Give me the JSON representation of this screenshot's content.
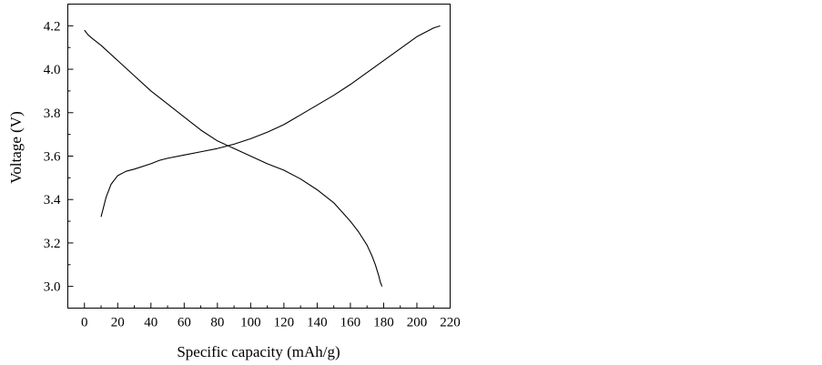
{
  "chart_data": {
    "type": "line",
    "title": "",
    "xlabel": "Specific capacity (mAh/g)",
    "ylabel": "Voltage (V)",
    "xlim": [
      -10,
      220
    ],
    "ylim": [
      2.9,
      4.3
    ],
    "x_ticks": [
      0,
      20,
      40,
      60,
      80,
      100,
      120,
      140,
      160,
      180,
      200,
      220
    ],
    "y_ticks": [
      3.0,
      3.2,
      3.4,
      3.6,
      3.8,
      4.0,
      4.2
    ],
    "x_tick_labels": [
      "0",
      "20",
      "40",
      "60",
      "80",
      "100",
      "120",
      "140",
      "160",
      "180",
      "200",
      "220"
    ],
    "y_tick_labels": [
      "3.0",
      "3.2",
      "3.4",
      "3.6",
      "3.8",
      "4.0",
      "4.2"
    ],
    "grid": false,
    "series": [
      {
        "x": [
          10,
          13,
          16,
          20,
          25,
          30,
          40,
          45,
          50,
          60,
          70,
          80,
          90,
          100,
          110,
          120,
          130,
          140,
          150,
          160,
          170,
          180,
          190,
          200,
          210,
          214
        ],
        "y": [
          3.32,
          3.41,
          3.47,
          3.51,
          3.53,
          3.54,
          3.565,
          3.58,
          3.59,
          3.605,
          3.62,
          3.635,
          3.655,
          3.68,
          3.71,
          3.745,
          3.79,
          3.835,
          3.88,
          3.93,
          3.985,
          4.04,
          4.095,
          4.15,
          4.19,
          4.2
        ]
      },
      {
        "x": [
          0,
          2,
          5,
          10,
          20,
          30,
          40,
          50,
          60,
          70,
          80,
          90,
          100,
          110,
          120,
          130,
          140,
          150,
          160,
          165,
          170,
          173,
          175,
          177,
          178,
          179
        ],
        "y": [
          4.18,
          4.16,
          4.14,
          4.11,
          4.04,
          3.97,
          3.9,
          3.84,
          3.78,
          3.72,
          3.67,
          3.635,
          3.6,
          3.565,
          3.535,
          3.495,
          3.445,
          3.385,
          3.3,
          3.25,
          3.19,
          3.14,
          3.1,
          3.05,
          3.02,
          3.0
        ]
      }
    ],
    "colors": {
      "line": "#000000",
      "axis": "#000000"
    }
  }
}
